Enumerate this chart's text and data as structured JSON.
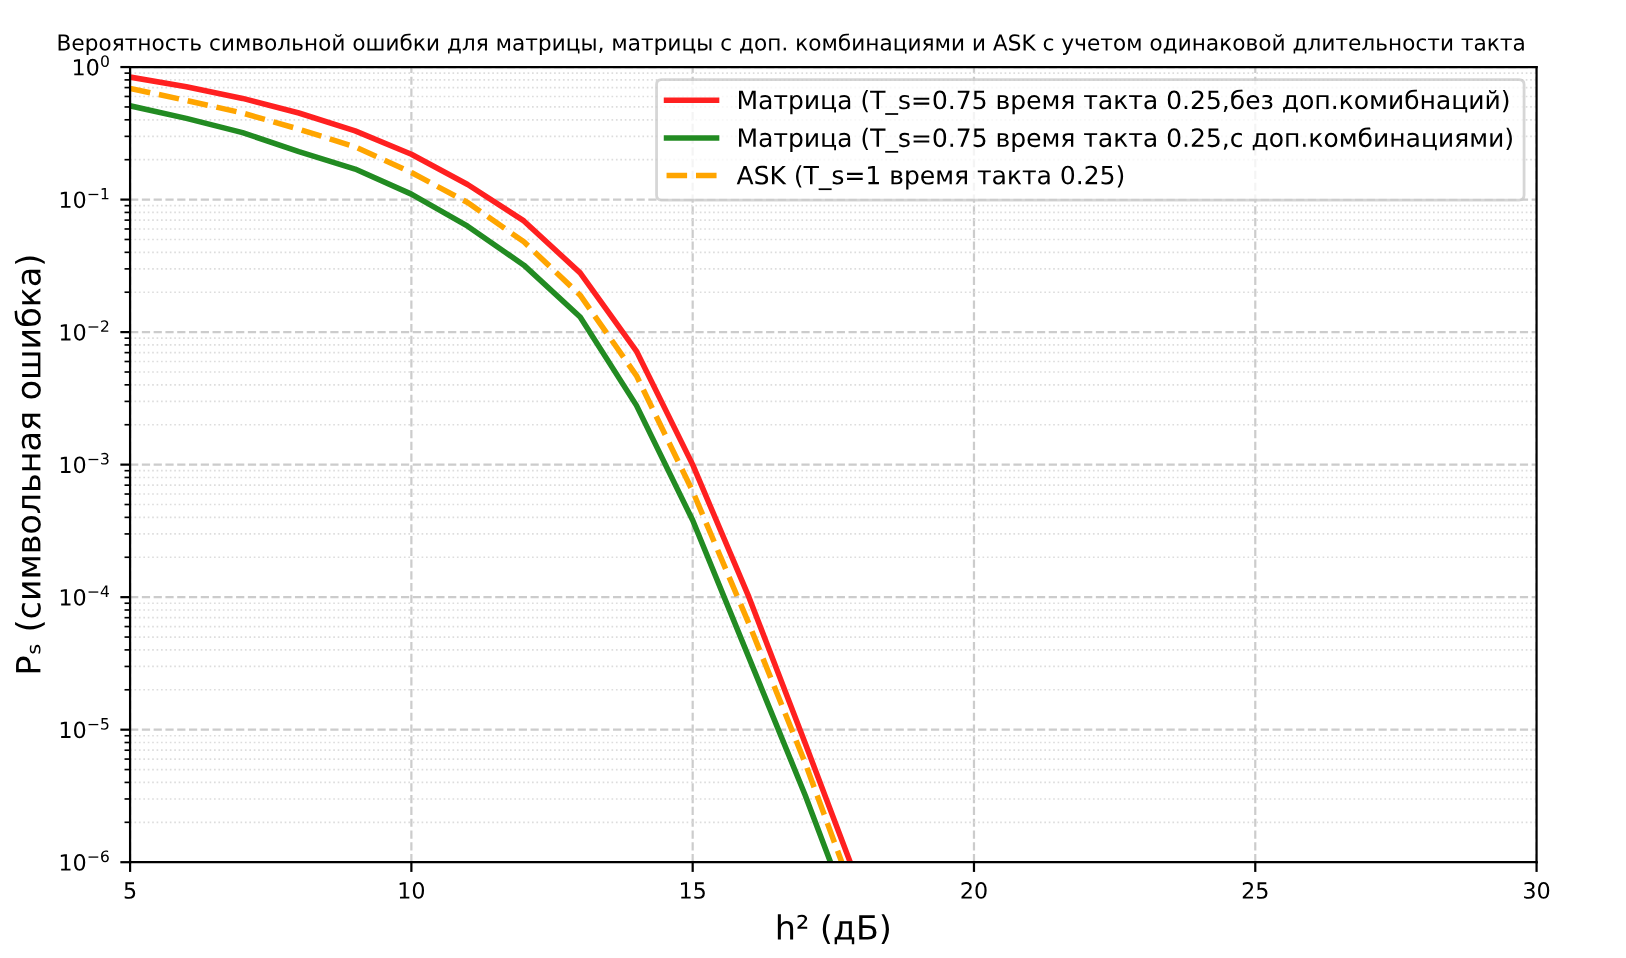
{
  "chart_data": {
    "type": "line",
    "title": "Вероятность символьной ошибки для матрицы, матрицы с доп. комбинациями и ASK с учетом одинаковой длительности такта",
    "xlabel": "h² (дБ)",
    "ylabel": "Pₛ (символьная ошибка)",
    "x": [
      5,
      6,
      7,
      8,
      9,
      10,
      11,
      12,
      13,
      14,
      15,
      16,
      17,
      17.8
    ],
    "series": [
      {
        "name": "Матрица (T_s=0.75 время такта 0.25,без доп.комибнаций)",
        "color": "#ff2020",
        "line_style": "solid",
        "values": [
          0.84,
          0.71,
          0.58,
          0.45,
          0.33,
          0.22,
          0.13,
          0.069,
          0.028,
          0.0072,
          0.001,
          0.0001,
          7.9e-06,
          1e-06
        ]
      },
      {
        "name": "Матрица (T_s=0.75 время такта 0.25,с доп.комбинациями)",
        "color": "#228b22",
        "line_style": "solid",
        "x": [
          5,
          6,
          7,
          8,
          9,
          10,
          11,
          12,
          13,
          14,
          15,
          16,
          17,
          17.45
        ],
        "values": [
          0.51,
          0.41,
          0.32,
          0.23,
          0.17,
          0.11,
          0.063,
          0.032,
          0.013,
          0.0028,
          0.00038,
          3.5e-05,
          3.2e-06,
          1e-06
        ]
      },
      {
        "name": "ASK (T_s=1 время такта 0.25)",
        "color": "#ffa500",
        "line_style": "dashed",
        "x": [
          5,
          6,
          7,
          8,
          9,
          10,
          11,
          12,
          13,
          14,
          15,
          16,
          17,
          17.65
        ],
        "values": [
          0.69,
          0.56,
          0.45,
          0.34,
          0.25,
          0.16,
          0.095,
          0.048,
          0.019,
          0.0047,
          0.00063,
          6.3e-05,
          5.6e-06,
          1e-06
        ]
      }
    ],
    "log": "y",
    "xlim": [
      5,
      30
    ],
    "xticks": [
      5,
      10,
      15,
      20,
      25,
      30
    ],
    "ylim": [
      1e-06,
      1
    ],
    "yticks": [
      {
        "value": 1e-06,
        "label": "10$^{−6}$"
      },
      {
        "value": 1e-05,
        "label": "10$^{−5}$"
      },
      {
        "value": 0.0001,
        "label": "10$^{−4}$"
      },
      {
        "value": 0.001,
        "label": "10$^{−3}$"
      },
      {
        "value": 0.01,
        "label": "10$^{−2}$"
      },
      {
        "value": 0.1,
        "label": "10$^{−1}$"
      },
      {
        "value": 1,
        "label": "10$^{0}$"
      }
    ],
    "grid": true,
    "legend": "top right",
    "marker": "none"
  }
}
